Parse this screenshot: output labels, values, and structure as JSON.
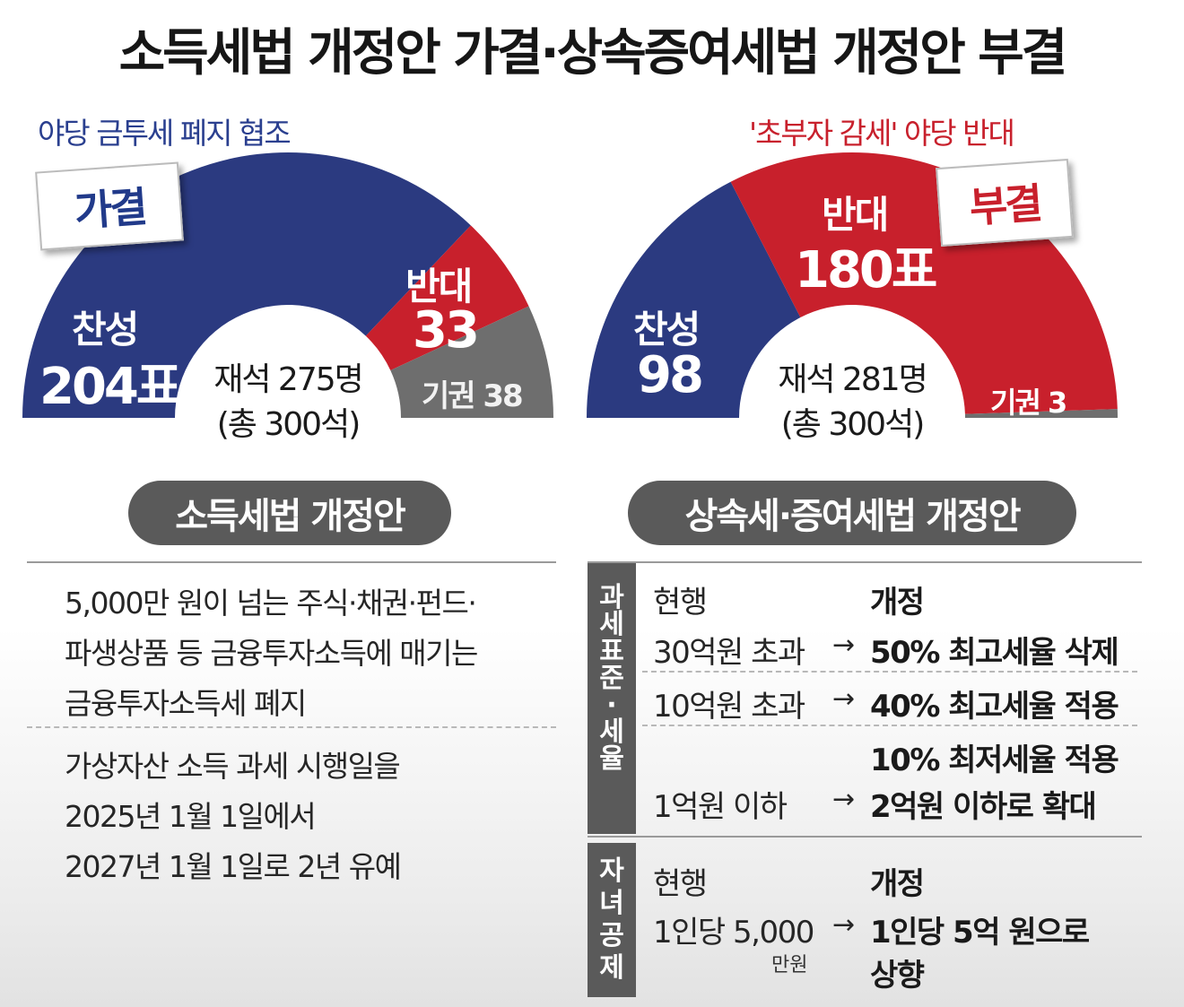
{
  "title": "소득세법 개정안 가결·상속증여세법 개정안 부결",
  "chart_data": [
    {
      "type": "pie",
      "subtitle": "야당 금투세 폐지 협조",
      "stamp": "가결",
      "categories": [
        "찬성",
        "반대",
        "기권"
      ],
      "values": [
        204,
        33,
        38
      ],
      "labels": {
        "yes": "찬성",
        "yes_value": "204표",
        "no": "반대",
        "no_value": "33",
        "abstain": "기권 38"
      },
      "present": "재석 275명",
      "total": "(총 300석)",
      "colors": {
        "yes": "#2b3a80",
        "no": "#c8202c",
        "abstain": "#6e6e6e"
      }
    },
    {
      "type": "pie",
      "subtitle": "'초부자 감세' 야당 반대",
      "stamp": "부결",
      "categories": [
        "찬성",
        "반대",
        "기권"
      ],
      "values": [
        98,
        180,
        3
      ],
      "labels": {
        "yes": "찬성",
        "yes_value": "98",
        "no": "반대",
        "no_value": "180표",
        "abstain": "기권 3"
      },
      "present": "재석 281명",
      "total": "(총 300석)",
      "colors": {
        "yes": "#2b3a80",
        "no": "#c8202c",
        "abstain": "#6e6e6e"
      }
    }
  ],
  "income_tax": {
    "heading": "소득세법 개정안",
    "block1": [
      "5,000만 원이 넘는 주식·채권·펀드·",
      "파생상품 등 금융투자소득에 매기는",
      "금융투자소득세 폐지"
    ],
    "block2": [
      "가상자산 소득 과세 시행일을",
      "2025년 1월 1일에서",
      "2027년 1월 1일로 2년 유예"
    ]
  },
  "inheritance_tax": {
    "heading": "상속세·증여세법 개정안",
    "section1_label": [
      "과",
      "세",
      "표",
      "준",
      "·",
      "세",
      "율"
    ],
    "section1": {
      "current_header": "현행",
      "revised_header": "개정",
      "arrow": "→",
      "rows": [
        {
          "current": "30억원 초과",
          "revised": "50% 최고세율 삭제"
        },
        {
          "current": "10억원 초과",
          "revised": "40% 최고세율 적용"
        },
        {
          "current": "1억원 이하",
          "revised_top": "10% 최저세율 적용",
          "revised": "2억원 이하로 확대"
        }
      ]
    },
    "section2_label": [
      "자",
      "녀",
      "공",
      "제"
    ],
    "section2": {
      "current_header": "현행",
      "revised_header": "개정",
      "arrow": "→",
      "current": "1인당 5,000",
      "current_unit": "만원",
      "revised_line1": "1인당 5억 원으로",
      "revised_line2": "상향"
    }
  }
}
